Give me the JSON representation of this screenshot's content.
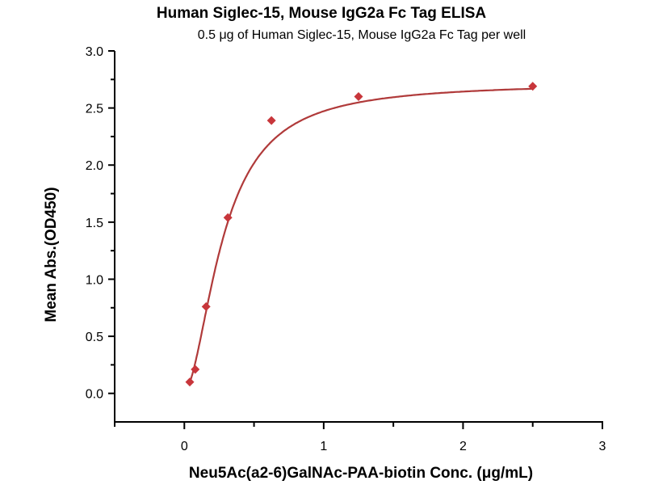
{
  "chart_data": {
    "type": "scatter",
    "title": "Human Siglec-15, Mouse IgG2a Fc Tag ELISA",
    "subtitle": "0.5 μg of Human Siglec-15, Mouse IgG2a Fc Tag per well",
    "xlabel": "Neu5Ac(a2-6)GalNAc-PAA-biotin Conc. (μg/mL)",
    "ylabel": "Mean Abs.(OD450)",
    "xlim": [
      -0.5,
      3
    ],
    "ylim": [
      -0.25,
      3.0
    ],
    "xticks": [
      0,
      1,
      2,
      3
    ],
    "xtick_labels": [
      "0",
      "1",
      "2",
      "3"
    ],
    "yticks": [
      0,
      0.5,
      1,
      1.5,
      2,
      2.5,
      3
    ],
    "ytick_labels": [
      "0.0",
      "0.5",
      "1.0",
      "1.5",
      "2.0",
      "2.5",
      "3.0"
    ],
    "grid": false,
    "series": [
      {
        "name": "data",
        "color": "#c8363b",
        "marker": "diamond",
        "x": [
          0.039,
          0.078,
          0.156,
          0.3125,
          0.625,
          1.25,
          2.5
        ],
        "y": [
          0.1,
          0.21,
          0.76,
          1.54,
          2.39,
          2.6,
          2.69
        ]
      }
    ],
    "fit": {
      "type": "4PL",
      "bottom": 0.02,
      "top": 2.72,
      "ec50": 0.28,
      "hill": 1.8,
      "color": "#b03a3a"
    }
  }
}
